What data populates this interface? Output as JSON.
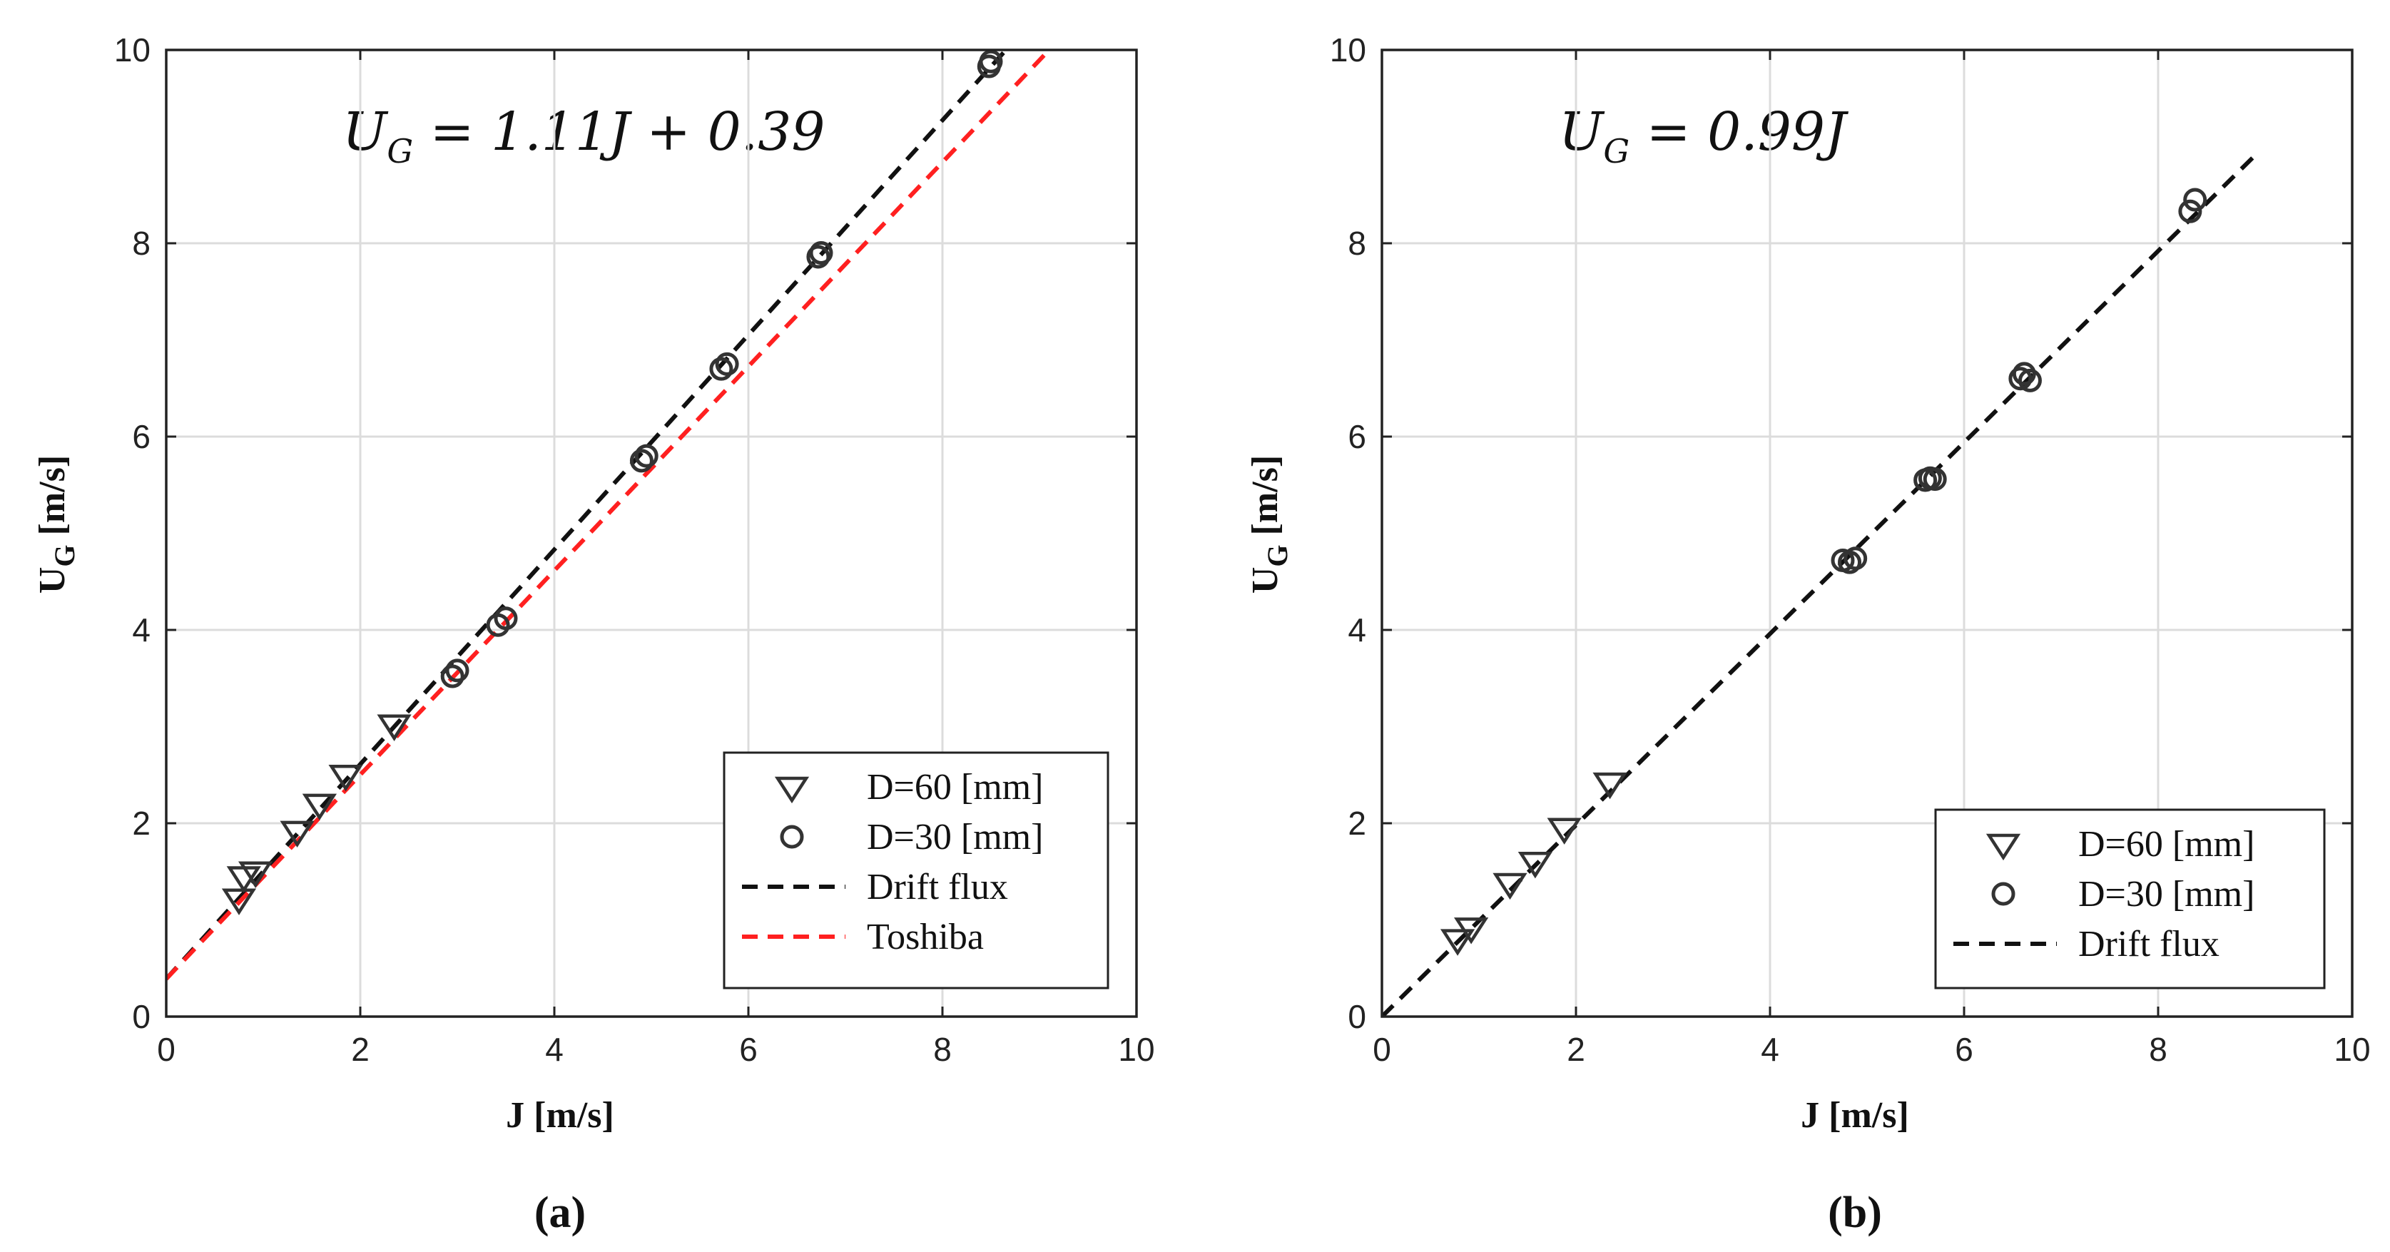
{
  "chart_data": [
    {
      "type": "scatter",
      "panel_label": "(a)",
      "equation": "U_G = 1.11J + 0.39",
      "equation_main": "U",
      "equation_sub": "G",
      "equation_rest": " = 1.11J + 0.39",
      "xlabel": "J [m/s]",
      "ylabel_main": "U",
      "ylabel_sub": "G",
      "ylabel_unit": " [m/s]",
      "xlim": [
        0,
        10
      ],
      "ylim": [
        0,
        10
      ],
      "xticks": [
        "0",
        "2",
        "4",
        "6",
        "8",
        "10"
      ],
      "yticks": [
        "0",
        "2",
        "4",
        "6",
        "8",
        "10"
      ],
      "grid": true,
      "legend_position": "bottom-right",
      "series": [
        {
          "name": "D=60 [mm]",
          "marker": "triangle-down",
          "color": "#333333",
          "x": [
            0.75,
            0.8,
            0.92,
            1.35,
            1.58,
            1.85,
            2.35
          ],
          "y": [
            1.22,
            1.45,
            1.5,
            1.92,
            2.2,
            2.5,
            3.02
          ]
        },
        {
          "name": "D=30 [mm]",
          "marker": "circle",
          "color": "#333333",
          "x": [
            2.95,
            3.0,
            3.42,
            3.5,
            4.9,
            4.95,
            5.72,
            5.78,
            6.72,
            6.75,
            8.48,
            8.5
          ],
          "y": [
            3.52,
            3.58,
            4.05,
            4.12,
            5.75,
            5.8,
            6.7,
            6.75,
            7.86,
            7.9,
            9.83,
            9.88
          ]
        },
        {
          "name": "Drift flux",
          "type": "line",
          "style": "dashed",
          "color": "#111111",
          "x": [
            0,
            8.7
          ],
          "y": [
            0.39,
            10.05
          ]
        },
        {
          "name": "Toshiba",
          "type": "line",
          "style": "dashed",
          "color": "#ff2020",
          "x": [
            0,
            9.1
          ],
          "y": [
            0.39,
            10.0
          ]
        }
      ]
    },
    {
      "type": "scatter",
      "panel_label": "(b)",
      "equation": "U_G = 0.99J",
      "equation_main": "U",
      "equation_sub": "G",
      "equation_rest": " = 0.99J",
      "xlabel": "J [m/s]",
      "ylabel_main": "U",
      "ylabel_sub": "G",
      "ylabel_unit": " [m/s]",
      "xlim": [
        0,
        10
      ],
      "ylim": [
        0,
        10
      ],
      "xticks": [
        "0",
        "2",
        "4",
        "6",
        "8",
        "10"
      ],
      "yticks": [
        "0",
        "2",
        "4",
        "6",
        "8",
        "10"
      ],
      "grid": true,
      "legend_position": "bottom-right",
      "series": [
        {
          "name": "D=60 [mm]",
          "marker": "triangle-down",
          "color": "#333333",
          "x": [
            0.78,
            0.92,
            1.32,
            1.58,
            1.88,
            2.35
          ],
          "y": [
            0.8,
            0.92,
            1.38,
            1.6,
            1.95,
            2.42
          ]
        },
        {
          "name": "D=30 [mm]",
          "marker": "circle",
          "color": "#333333",
          "x": [
            4.75,
            4.82,
            4.88,
            5.6,
            5.65,
            5.7,
            6.58,
            6.62,
            6.68,
            8.33,
            8.38
          ],
          "y": [
            4.72,
            4.7,
            4.74,
            5.55,
            5.57,
            5.56,
            6.6,
            6.65,
            6.58,
            8.33,
            8.45
          ]
        },
        {
          "name": "Drift flux",
          "type": "line",
          "style": "dashed",
          "color": "#111111",
          "x": [
            0,
            9.0
          ],
          "y": [
            0,
            8.91
          ]
        }
      ]
    }
  ]
}
